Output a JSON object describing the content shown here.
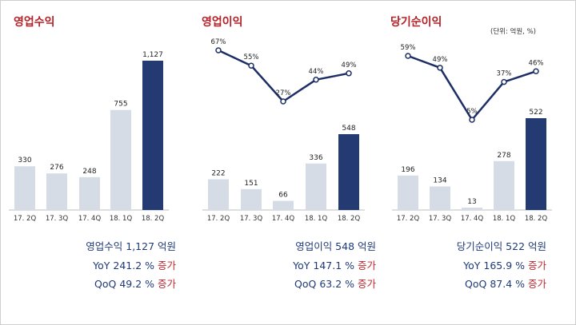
{
  "unit_note": "(단위: 억원, %)",
  "colors": {
    "bar_light": "#d6dce6",
    "bar_dark": "#233a73",
    "line": "#1d2e66",
    "title": "#b42025",
    "summary": "#1f3a78",
    "increase": "#c0272d"
  },
  "chart_data": [
    {
      "type": "bar",
      "title": "영업수익",
      "categories": [
        "17. 2Q",
        "17. 3Q",
        "17. 4Q",
        "18. 1Q",
        "18. 2Q"
      ],
      "values": [
        330,
        276,
        248,
        755,
        1127
      ],
      "value_labels": [
        "330",
        "276",
        "248",
        "755",
        "1,127"
      ],
      "highlight_index": 4,
      "summary": {
        "headline": "영업수익 1,127 억원",
        "yoy_value": "YoY 241.2 % ",
        "qoq_value": "QoQ 49.2 % ",
        "change_word": "증가"
      }
    },
    {
      "type": "bar+line",
      "title": "영업이익",
      "categories": [
        "17. 2Q",
        "17. 3Q",
        "17. 4Q",
        "18. 1Q",
        "18. 2Q"
      ],
      "values": [
        222,
        151,
        66,
        336,
        548
      ],
      "value_labels": [
        "222",
        "151",
        "66",
        "336",
        "548"
      ],
      "margin_pct": [
        67,
        55,
        27,
        44,
        49
      ],
      "margin_labels": [
        "67%",
        "55%",
        "27%",
        "44%",
        "49%"
      ],
      "highlight_index": 4,
      "summary": {
        "headline": "영업이익 548 억원",
        "yoy_value": "YoY 147.1 % ",
        "qoq_value": "QoQ 63.2 % ",
        "change_word": "증가"
      }
    },
    {
      "type": "bar+line",
      "title": "당기순이익",
      "categories": [
        "17. 2Q",
        "17. 3Q",
        "17. 4Q",
        "18. 1Q",
        "18. 2Q"
      ],
      "values": [
        196,
        134,
        13,
        278,
        522
      ],
      "value_labels": [
        "196",
        "134",
        "13",
        "278",
        "522"
      ],
      "margin_pct": [
        59,
        49,
        5,
        37,
        46
      ],
      "margin_labels": [
        "59%",
        "49%",
        "5%",
        "37%",
        "46%"
      ],
      "highlight_index": 4,
      "summary": {
        "headline": "당기순이익 522 억원",
        "yoy_value": "YoY 165.9 % ",
        "qoq_value": "QoQ 87.4 % ",
        "change_word": "증가"
      }
    }
  ]
}
